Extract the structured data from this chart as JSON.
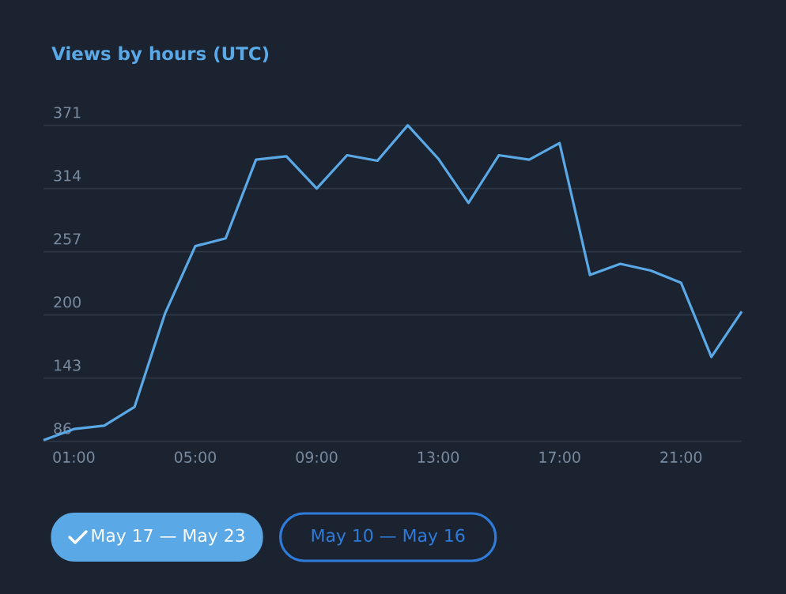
{
  "chart_data": {
    "type": "line",
    "title": "Views by hours (UTC)",
    "x": [
      0,
      1,
      2,
      3,
      4,
      5,
      6,
      7,
      8,
      9,
      10,
      11,
      12,
      13,
      14,
      15,
      16,
      17,
      18,
      19,
      20,
      21,
      22,
      23
    ],
    "series": [
      {
        "name": "May 17 — May 23",
        "color": "#5aa9e6",
        "values": [
          87,
          97,
          100,
          117,
          201,
          262,
          269,
          340,
          343,
          314,
          344,
          339,
          371,
          341,
          301,
          344,
          340,
          355,
          236,
          246,
          240,
          229,
          162,
          203
        ]
      }
    ],
    "xlim": [
      0,
      23
    ],
    "xticks": [
      {
        "value": 1,
        "label": "01:00"
      },
      {
        "value": 5,
        "label": "05:00"
      },
      {
        "value": 9,
        "label": "09:00"
      },
      {
        "value": 13,
        "label": "13:00"
      },
      {
        "value": 17,
        "label": "17:00"
      },
      {
        "value": 21,
        "label": "21:00"
      }
    ],
    "ylim": [
      86,
      371
    ],
    "yticks": [
      86,
      143,
      200,
      257,
      314,
      371
    ],
    "grid": "y",
    "legend": "bottom left",
    "marker": "none",
    "line_style": "solid",
    "annotations": [
      "May 10 — May 16"
    ]
  }
}
